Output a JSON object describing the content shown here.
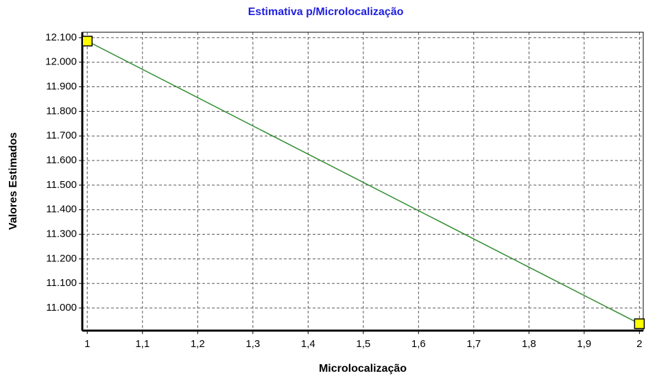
{
  "chart_data": {
    "type": "line",
    "title": "Estimativa p/Microlocalização",
    "x_label": "Microlocalização",
    "y_label": "Valores Estimados",
    "x": [
      1,
      2
    ],
    "series": [
      {
        "name": "Valores Estimados",
        "color": "#2e8b2e",
        "marker_color": "#ffff00",
        "values": [
          12086,
          10936
        ]
      }
    ],
    "xlim": [
      0.991,
      2.007
    ],
    "ylim": [
      10908,
      12122
    ],
    "xticks": [
      1,
      {
        "value": 1.1,
        "label": "1,1"
      },
      {
        "value": 1.2,
        "label": "1,2"
      },
      {
        "value": 1.3,
        "label": "1,3"
      },
      {
        "value": 1.4,
        "label": "1,4"
      },
      {
        "value": 1.5,
        "label": "1,5"
      },
      {
        "value": 1.6,
        "label": "1,6"
      },
      {
        "value": 1.7,
        "label": "1,7"
      },
      {
        "value": 1.8,
        "label": "1,8"
      },
      {
        "value": 1.9,
        "label": "1,9"
      },
      2
    ],
    "yticks": [
      {
        "value": 11000,
        "label": "11.000"
      },
      {
        "value": 11100,
        "label": "11.100"
      },
      {
        "value": 11200,
        "label": "11.200"
      },
      {
        "value": 11300,
        "label": "11.300"
      },
      {
        "value": 11400,
        "label": "11.400"
      },
      {
        "value": 11500,
        "label": "11.500"
      },
      {
        "value": 11600,
        "label": "11.600"
      },
      {
        "value": 11700,
        "label": "11.700"
      },
      {
        "value": 11800,
        "label": "11.800"
      },
      {
        "value": 11900,
        "label": "11.900"
      },
      {
        "value": 12000,
        "label": "12.000"
      },
      {
        "value": 12100,
        "label": "12.100"
      }
    ],
    "grid": true
  }
}
